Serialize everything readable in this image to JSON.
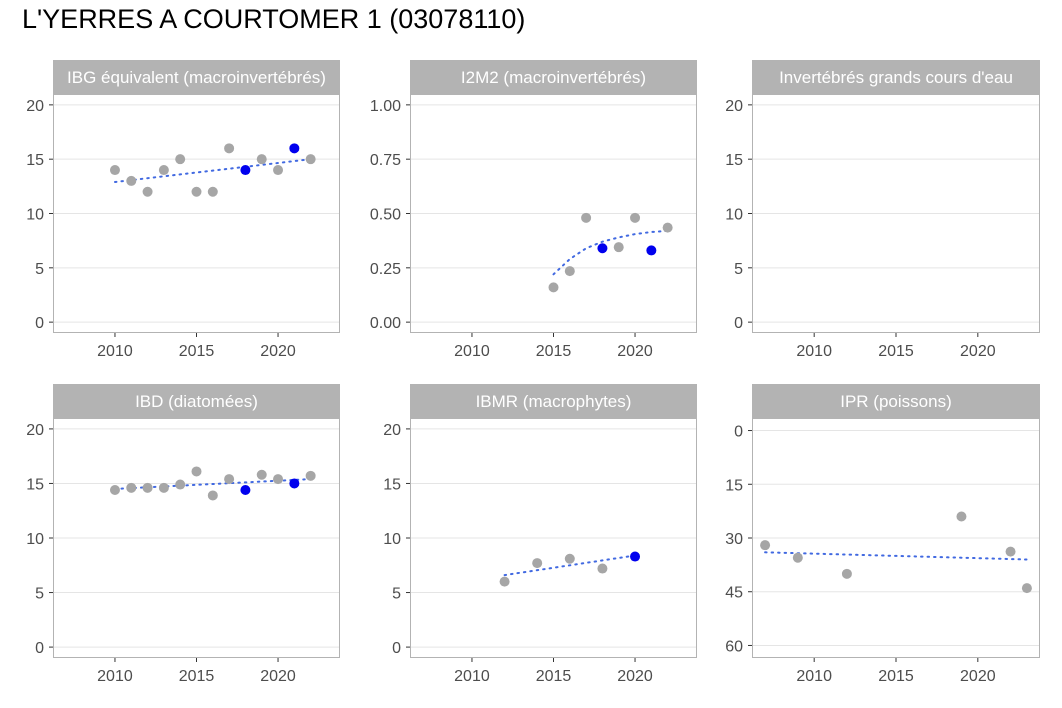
{
  "title": "L'YERRES A COURTOMER 1 (03078110)",
  "colors": {
    "strip_fill": "#b3b3b3",
    "panel_border": "#b3b3b3",
    "gridline": "#e5e5e5",
    "point_grey": "#a6a6a6",
    "point_highlight": "#0000ee",
    "trend": "#4169e1"
  },
  "chart_data": [
    {
      "type": "scatter",
      "title": "IBG équivalent (macroinvertébrés)",
      "xlim": [
        2006.2,
        2023.8
      ],
      "ylim": [
        -1,
        21
      ],
      "x_ticks": [
        2010,
        2015,
        2020
      ],
      "y_ticks": [
        0,
        5,
        10,
        15,
        20
      ],
      "y_tick_labels": [
        "0",
        "5",
        "10",
        "15",
        "20"
      ],
      "y_reversed": false,
      "points": [
        {
          "x": 2010,
          "y": 14,
          "highlight": false
        },
        {
          "x": 2011,
          "y": 13,
          "highlight": false
        },
        {
          "x": 2012,
          "y": 12,
          "highlight": false
        },
        {
          "x": 2013,
          "y": 14,
          "highlight": false
        },
        {
          "x": 2014,
          "y": 15,
          "highlight": false
        },
        {
          "x": 2015,
          "y": 12,
          "highlight": false
        },
        {
          "x": 2016,
          "y": 12,
          "highlight": false
        },
        {
          "x": 2017,
          "y": 16,
          "highlight": false
        },
        {
          "x": 2018,
          "y": 14,
          "highlight": true
        },
        {
          "x": 2019,
          "y": 15,
          "highlight": false
        },
        {
          "x": 2020,
          "y": 14,
          "highlight": false
        },
        {
          "x": 2021,
          "y": 16,
          "highlight": true
        },
        {
          "x": 2022,
          "y": 15,
          "highlight": false
        }
      ],
      "trend": [
        {
          "x": 2010,
          "y": 12.9
        },
        {
          "x": 2022,
          "y": 15.0
        }
      ]
    },
    {
      "type": "scatter",
      "title": "I2M2 (macroinvertébrés)",
      "xlim": [
        2006.2,
        2023.8
      ],
      "ylim": [
        -0.05,
        1.05
      ],
      "x_ticks": [
        2010,
        2015,
        2020
      ],
      "y_ticks": [
        0,
        0.25,
        0.5,
        0.75,
        1.0
      ],
      "y_tick_labels": [
        "0.00",
        "0.25",
        "0.50",
        "0.75",
        "1.00"
      ],
      "y_reversed": false,
      "points": [
        {
          "x": 2015,
          "y": 0.16,
          "highlight": false
        },
        {
          "x": 2016,
          "y": 0.235,
          "highlight": false
        },
        {
          "x": 2017,
          "y": 0.48,
          "highlight": false
        },
        {
          "x": 2018,
          "y": 0.34,
          "highlight": true
        },
        {
          "x": 2019,
          "y": 0.345,
          "highlight": false
        },
        {
          "x": 2020,
          "y": 0.48,
          "highlight": false
        },
        {
          "x": 2021,
          "y": 0.33,
          "highlight": true
        },
        {
          "x": 2022,
          "y": 0.435,
          "highlight": false
        }
      ],
      "trend": [
        {
          "x": 2015,
          "y": 0.22
        },
        {
          "x": 2016,
          "y": 0.29
        },
        {
          "x": 2017,
          "y": 0.34
        },
        {
          "x": 2018,
          "y": 0.37
        },
        {
          "x": 2019,
          "y": 0.39
        },
        {
          "x": 2020,
          "y": 0.405
        },
        {
          "x": 2021,
          "y": 0.415
        },
        {
          "x": 2022,
          "y": 0.42
        }
      ]
    },
    {
      "type": "scatter",
      "title": "Invertébrés grands cours d'eau",
      "xlim": [
        2006.2,
        2023.8
      ],
      "ylim": [
        -1,
        21
      ],
      "x_ticks": [
        2010,
        2015,
        2020
      ],
      "y_ticks": [
        0,
        5,
        10,
        15,
        20
      ],
      "y_tick_labels": [
        "0",
        "5",
        "10",
        "15",
        "20"
      ],
      "y_reversed": false,
      "points": [],
      "trend": []
    },
    {
      "type": "scatter",
      "title": "IBD (diatomées)",
      "xlim": [
        2006.2,
        2023.8
      ],
      "ylim": [
        -1,
        21
      ],
      "x_ticks": [
        2010,
        2015,
        2020
      ],
      "y_ticks": [
        0,
        5,
        10,
        15,
        20
      ],
      "y_tick_labels": [
        "0",
        "5",
        "10",
        "15",
        "20"
      ],
      "y_reversed": false,
      "points": [
        {
          "x": 2010,
          "y": 14.4,
          "highlight": false
        },
        {
          "x": 2011,
          "y": 14.6,
          "highlight": false
        },
        {
          "x": 2012,
          "y": 14.6,
          "highlight": false
        },
        {
          "x": 2013,
          "y": 14.6,
          "highlight": false
        },
        {
          "x": 2014,
          "y": 14.9,
          "highlight": false
        },
        {
          "x": 2015,
          "y": 16.1,
          "highlight": false
        },
        {
          "x": 2016,
          "y": 13.9,
          "highlight": false
        },
        {
          "x": 2017,
          "y": 15.4,
          "highlight": false
        },
        {
          "x": 2018,
          "y": 14.4,
          "highlight": true
        },
        {
          "x": 2019,
          "y": 15.8,
          "highlight": false
        },
        {
          "x": 2020,
          "y": 15.4,
          "highlight": false
        },
        {
          "x": 2021,
          "y": 15.0,
          "highlight": true
        },
        {
          "x": 2022,
          "y": 15.7,
          "highlight": false
        }
      ],
      "trend": [
        {
          "x": 2010,
          "y": 14.5
        },
        {
          "x": 2022,
          "y": 15.4
        }
      ]
    },
    {
      "type": "scatter",
      "title": "IBMR (macrophytes)",
      "xlim": [
        2006.2,
        2023.8
      ],
      "ylim": [
        -1,
        21
      ],
      "x_ticks": [
        2010,
        2015,
        2020
      ],
      "y_ticks": [
        0,
        5,
        10,
        15,
        20
      ],
      "y_tick_labels": [
        "0",
        "5",
        "10",
        "15",
        "20"
      ],
      "y_reversed": false,
      "points": [
        {
          "x": 2012,
          "y": 6.0,
          "highlight": false
        },
        {
          "x": 2014,
          "y": 7.7,
          "highlight": false
        },
        {
          "x": 2016,
          "y": 8.1,
          "highlight": false
        },
        {
          "x": 2018,
          "y": 7.2,
          "highlight": false
        },
        {
          "x": 2020,
          "y": 8.3,
          "highlight": true
        }
      ],
      "trend": [
        {
          "x": 2012,
          "y": 6.6
        },
        {
          "x": 2020,
          "y": 8.4
        }
      ]
    },
    {
      "type": "scatter",
      "title": "IPR (poissons)",
      "xlim": [
        2006.2,
        2023.8
      ],
      "ylim": [
        -3.5,
        63.5
      ],
      "x_ticks": [
        2010,
        2015,
        2020
      ],
      "y_ticks": [
        0,
        15,
        30,
        45,
        60
      ],
      "y_tick_labels": [
        "0",
        "15",
        "30",
        "45",
        "60"
      ],
      "y_reversed": true,
      "points": [
        {
          "x": 2007,
          "y": 32.0,
          "highlight": false
        },
        {
          "x": 2009,
          "y": 35.5,
          "highlight": false
        },
        {
          "x": 2012,
          "y": 40.0,
          "highlight": false
        },
        {
          "x": 2019,
          "y": 24.0,
          "highlight": false
        },
        {
          "x": 2022,
          "y": 33.8,
          "highlight": false
        },
        {
          "x": 2023,
          "y": 44.0,
          "highlight": false
        }
      ],
      "trend": [
        {
          "x": 2007,
          "y": 34.0
        },
        {
          "x": 2023,
          "y": 36.0
        }
      ]
    }
  ]
}
